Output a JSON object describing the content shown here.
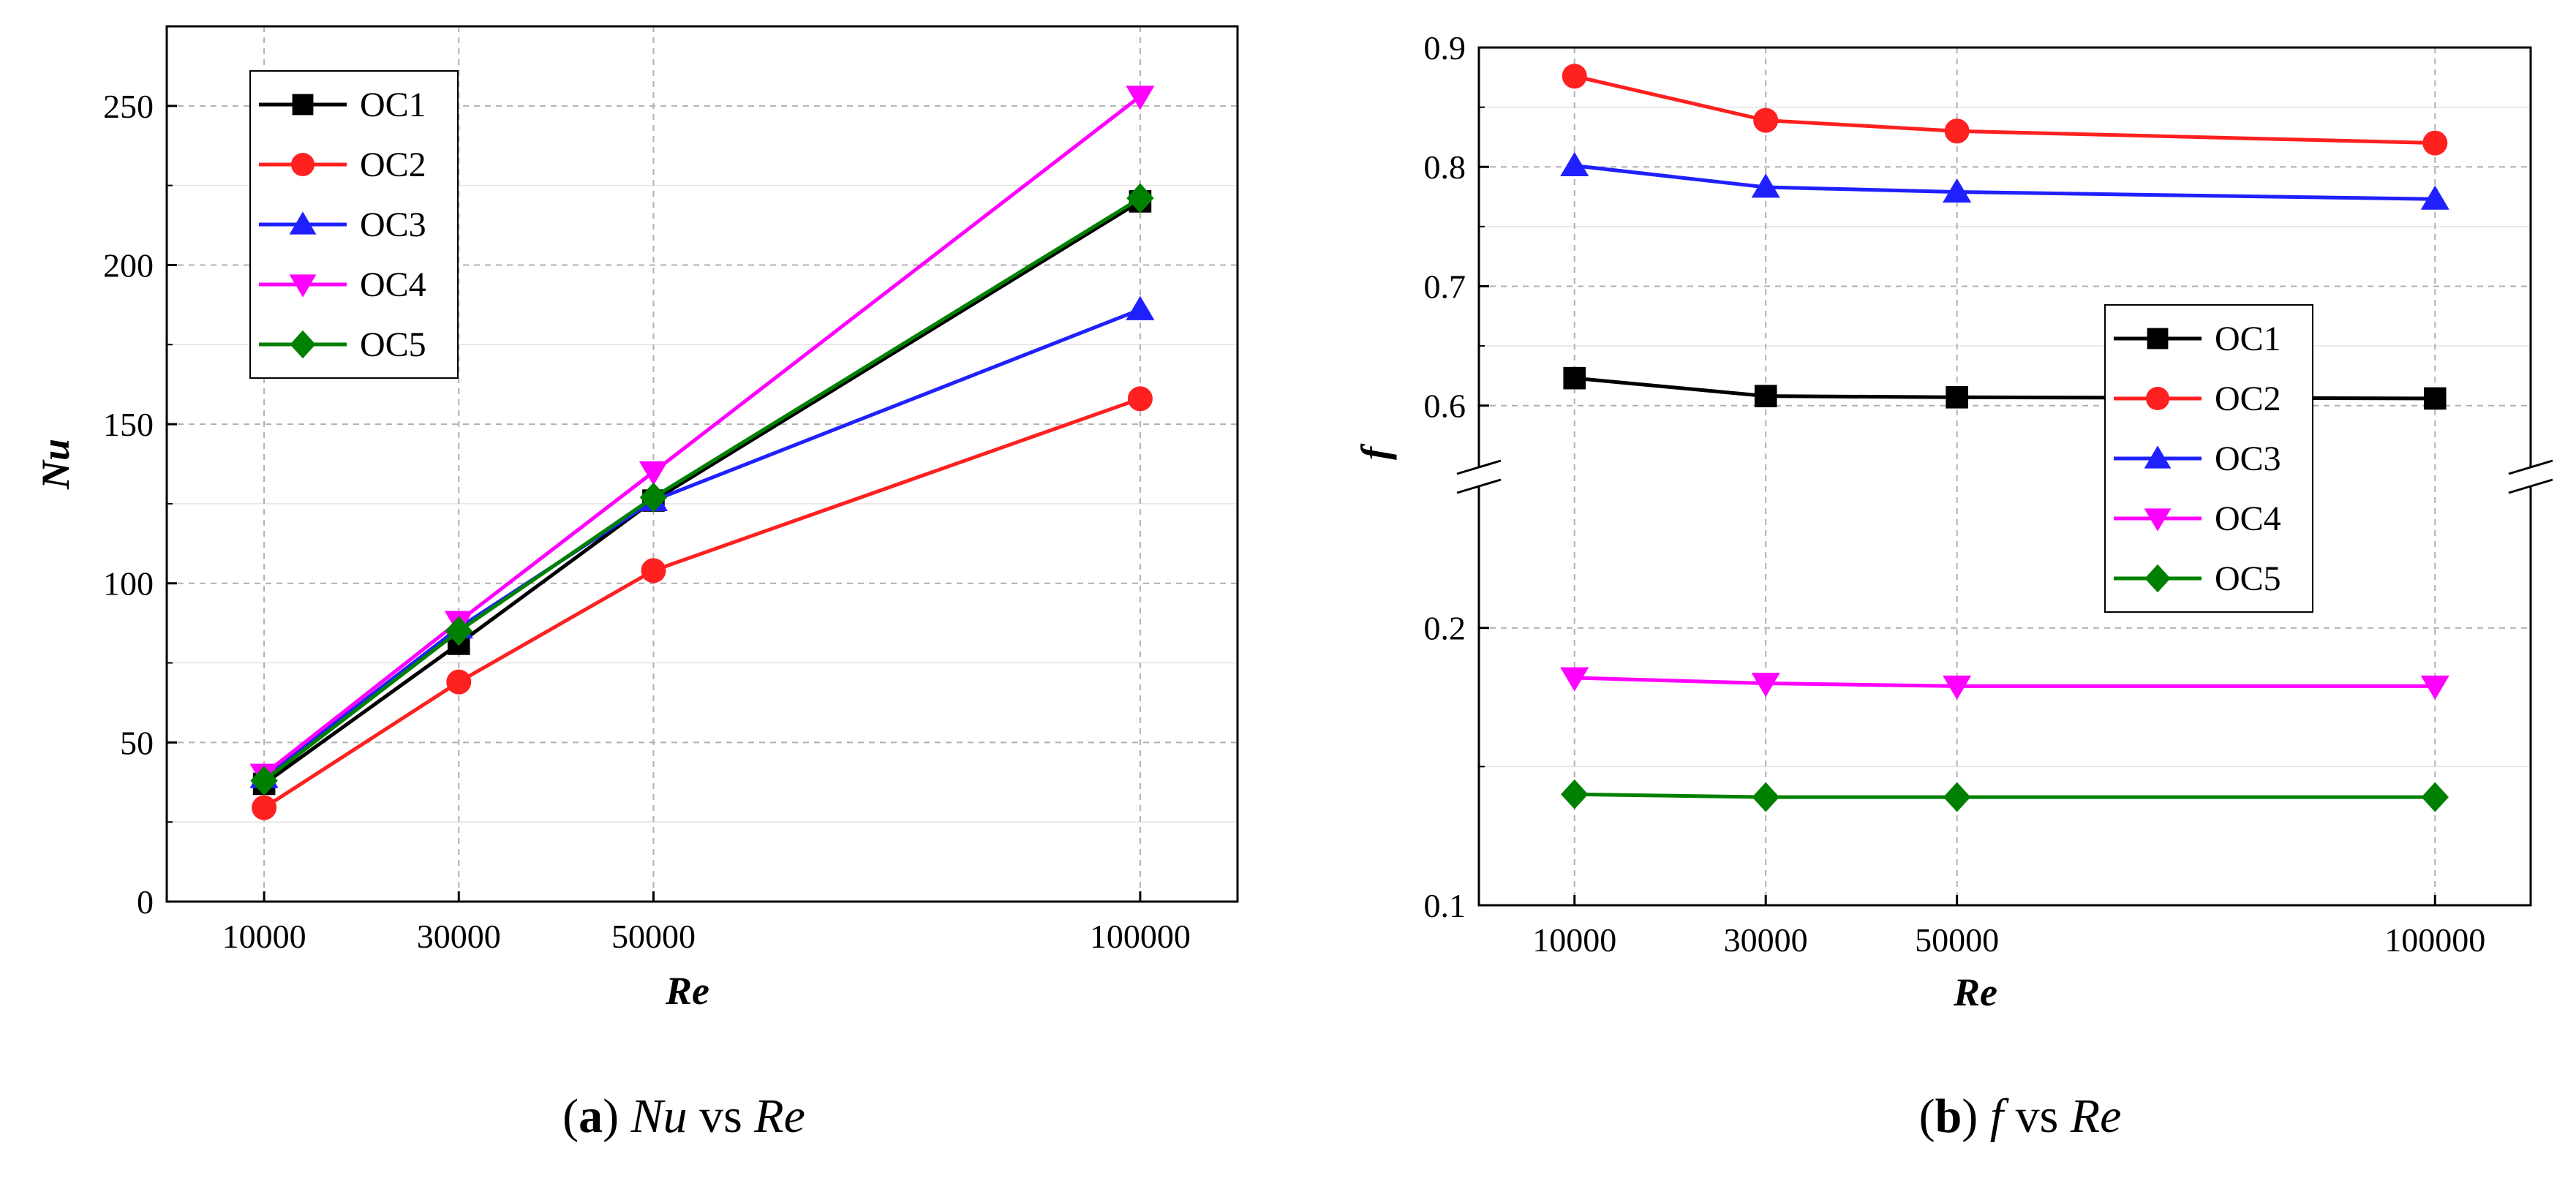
{
  "chart_data": [
    {
      "id": "a",
      "type": "line",
      "caption": {
        "letter": "a",
        "var": "Nu",
        "vs": "vs",
        "ref": "Re"
      },
      "xlabel": "Re",
      "ylabel": "Nu",
      "categories": [
        "10000",
        "30000",
        "50000",
        "100000"
      ],
      "x": [
        10000,
        30000,
        50000,
        100000
      ],
      "xlim": [
        0,
        110000
      ],
      "ylim": [
        0,
        275
      ],
      "yticks": [
        0,
        50,
        100,
        150,
        200,
        250
      ],
      "grid": true,
      "legend_position": "top-left",
      "series": [
        {
          "name": "OC1",
          "color": "#000000",
          "marker": "square",
          "values": [
            37,
            81,
            126,
            220
          ]
        },
        {
          "name": "OC2",
          "color": "#ff2020",
          "marker": "circle",
          "values": [
            29.5,
            69,
            104,
            158
          ]
        },
        {
          "name": "OC3",
          "color": "#2020ff",
          "marker": "triangle-up",
          "values": [
            39,
            86,
            126,
            186
          ]
        },
        {
          "name": "OC4",
          "color": "#ff00ff",
          "marker": "triangle-down",
          "values": [
            40,
            88,
            135,
            253
          ]
        },
        {
          "name": "OC5",
          "color": "#008000",
          "marker": "diamond",
          "values": [
            38,
            85,
            127,
            221
          ]
        }
      ]
    },
    {
      "id": "b",
      "type": "line",
      "caption": {
        "letter": "b",
        "var": "f",
        "vs": "vs",
        "ref": "Re"
      },
      "xlabel": "Re",
      "ylabel": "f",
      "categories": [
        "10000",
        "30000",
        "50000",
        "100000"
      ],
      "x": [
        10000,
        30000,
        50000,
        100000
      ],
      "xlim": [
        0,
        110000
      ],
      "axis_break": true,
      "upper_segment": {
        "ylim": [
          0.56,
          0.9
        ],
        "yticks": [
          0.6,
          0.7,
          0.8,
          0.9
        ],
        "tick_labels": [
          "0.6",
          "0.7",
          "0.8",
          "0.9"
        ]
      },
      "lower_segment": {
        "ylim": [
          0.1,
          0.245
        ],
        "yticks": [
          0.1,
          0.2
        ],
        "tick_labels": [
          "0.1",
          "0.2"
        ]
      },
      "grid": true,
      "legend_position": "center-right",
      "series": [
        {
          "name": "OC1",
          "color": "#000000",
          "marker": "square",
          "values": [
            0.623,
            0.608,
            0.607,
            0.606
          ]
        },
        {
          "name": "OC2",
          "color": "#ff2020",
          "marker": "circle",
          "values": [
            0.876,
            0.839,
            0.83,
            0.82
          ]
        },
        {
          "name": "OC3",
          "color": "#2020ff",
          "marker": "triangle-up",
          "values": [
            0.801,
            0.783,
            0.779,
            0.773
          ]
        },
        {
          "name": "OC4",
          "color": "#ff00ff",
          "marker": "triangle-down",
          "values": [
            0.182,
            0.18,
            0.179,
            0.179
          ]
        },
        {
          "name": "OC5",
          "color": "#008000",
          "marker": "diamond",
          "values": [
            0.14,
            0.139,
            0.139,
            0.139
          ]
        }
      ]
    }
  ]
}
